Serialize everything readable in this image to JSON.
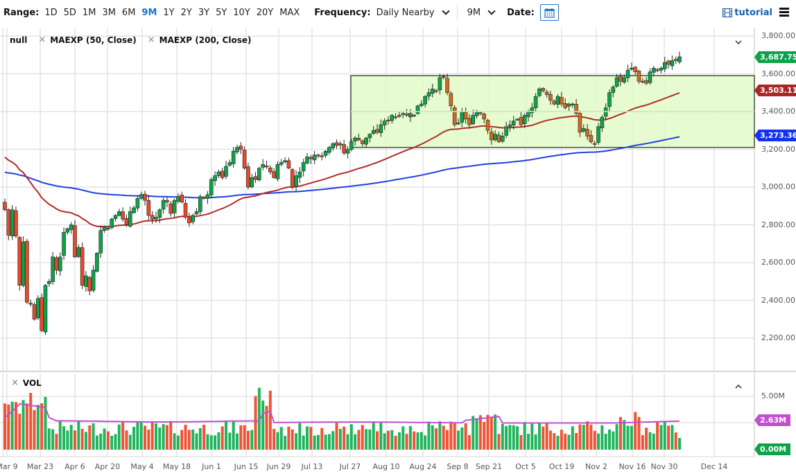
{
  "toolbar": {
    "range_label": "Range:",
    "ranges": [
      "1D",
      "5D",
      "1M",
      "3M",
      "6M",
      "9M",
      "1Y",
      "2Y",
      "3Y",
      "5Y",
      "10Y",
      "20Y",
      "MAX"
    ],
    "active_range": "9M",
    "frequency_label": "Frequency:",
    "frequency_value": "Daily Nearby",
    "period_value": "9M",
    "date_label": "Date:",
    "tutorial_label": "tutorial"
  },
  "legend": {
    "main_series": "null",
    "studies": [
      "MAEXP (50, Close)",
      "MAEXP (200, Close)"
    ],
    "volume": "VOL"
  },
  "price_axis": {
    "ticks": [
      "3,800.00",
      "3,600.00",
      "3,400.00",
      "3,200.00",
      "3,000.00",
      "2,800.00",
      "2,600.00",
      "2,400.00",
      "2,200.00"
    ],
    "last_price": "3,687.75",
    "ma50_value": "3,503.11",
    "ma200_value": "3,273.36"
  },
  "volume_axis": {
    "ticks": [
      "5.00M"
    ],
    "vol_ma_value": "2.63M",
    "last_volume": "0.00M"
  },
  "x_axis": {
    "ticks": [
      "Mar 9",
      "Mar 23",
      "Apr 6",
      "Apr 20",
      "May 4",
      "May 18",
      "Jun 1",
      "Jun 15",
      "Jun 29",
      "Jul 13",
      "Jul 27",
      "Aug 10",
      "Aug 24",
      "Sep 8",
      "Sep 21",
      "Oct 5",
      "Oct 19",
      "Nov 2",
      "Nov 16",
      "Nov 30",
      "Dec 14"
    ],
    "tick_x": [
      10,
      58,
      108,
      155,
      205,
      255,
      305,
      355,
      402,
      450,
      505,
      557,
      610,
      660,
      705,
      758,
      810,
      860,
      912,
      958,
      1030
    ]
  },
  "colors": {
    "up": "#0ea34a",
    "down": "#e8492c",
    "ma50": "#b22a2a",
    "ma50_in_box": "#b5652a",
    "ma200": "#1f3fe0",
    "vol_ma": "#c050d0",
    "range_box_fill": "#e2fbc8",
    "range_box_stroke": "#2b3a25",
    "accent": "#1a73c8",
    "tag_price": "#0ea34a",
    "tag_ma50": "#a82828",
    "tag_ma200": "#1232f0",
    "tag_vol_ma": "#c050d0",
    "tag_vol": "#0ea34a"
  },
  "chart_data": {
    "type": "candlestick",
    "title": "",
    "xlabel": "",
    "ylabel": "",
    "ylim": [
      2150,
      3830
    ],
    "range_box": {
      "x_start": "Jul 27",
      "x_end": "Dec (right edge)",
      "low": 3210,
      "high": 3590
    },
    "x_start": "Mar 9",
    "x_end": "Dec 4",
    "closes": [
      2880,
      2745,
      2880,
      2740,
      2480,
      2710,
      2390,
      2380,
      2300,
      2410,
      2240,
      2480,
      2500,
      2630,
      2560,
      2630,
      2760,
      2780,
      2800,
      2630,
      2680,
      2480,
      2530,
      2450,
      2560,
      2650,
      2770,
      2790,
      2780,
      2830,
      2850,
      2870,
      2830,
      2800,
      2870,
      2890,
      2940,
      2960,
      2930,
      2850,
      2830,
      2840,
      2880,
      2930,
      2920,
      2860,
      2930,
      2950,
      2920,
      2840,
      2810,
      2850,
      2870,
      2950,
      2940,
      2960,
      3040,
      3060,
      3080,
      3050,
      3110,
      3130,
      3190,
      3210,
      3200,
      3100,
      3000,
      3050,
      3040,
      3100,
      3120,
      3110,
      3080,
      3050,
      3120,
      3130,
      3140,
      3100,
      3000,
      3060,
      3080,
      3130,
      3160,
      3150,
      3170,
      3170,
      3160,
      3190,
      3210,
      3230,
      3220,
      3230,
      3180,
      3200,
      3240,
      3260,
      3250,
      3230,
      3260,
      3280,
      3300,
      3290,
      3330,
      3350,
      3350,
      3380,
      3370,
      3380,
      3390,
      3380,
      3390,
      3380,
      3430,
      3440,
      3480,
      3500,
      3520,
      3510,
      3580,
      3580,
      3500,
      3430,
      3330,
      3340,
      3400,
      3360,
      3330,
      3380,
      3400,
      3390,
      3360,
      3300,
      3250,
      3280,
      3240,
      3270,
      3320,
      3330,
      3350,
      3360,
      3330,
      3380,
      3400,
      3420,
      3480,
      3520,
      3510,
      3490,
      3460,
      3440,
      3480,
      3440,
      3420,
      3440,
      3440,
      3390,
      3290,
      3310,
      3270,
      3240,
      3230,
      3320,
      3370,
      3420,
      3500,
      3530,
      3580,
      3560,
      3580,
      3620,
      3630,
      3610,
      3560,
      3560,
      3550,
      3610,
      3630,
      3620,
      3630,
      3660,
      3650,
      3670,
      3670,
      3690
    ],
    "ma50_last": 3503.11,
    "ma200_last": 3273.36,
    "last_price": 3687.75,
    "volume_ylim": [
      0,
      6.2
    ],
    "volume_unit": "M",
    "volume_ma_last": 2.63,
    "series": [
      {
        "name": "Price (Daily Nearby)",
        "type": "candlestick"
      },
      {
        "name": "MAEXP (50, Close)",
        "type": "line",
        "last": 3503.11
      },
      {
        "name": "MAEXP (200, Close)",
        "type": "line",
        "last": 3273.36
      },
      {
        "name": "VOL",
        "type": "bar"
      },
      {
        "name": "VOL MA",
        "type": "line",
        "last": 2.63
      }
    ]
  }
}
